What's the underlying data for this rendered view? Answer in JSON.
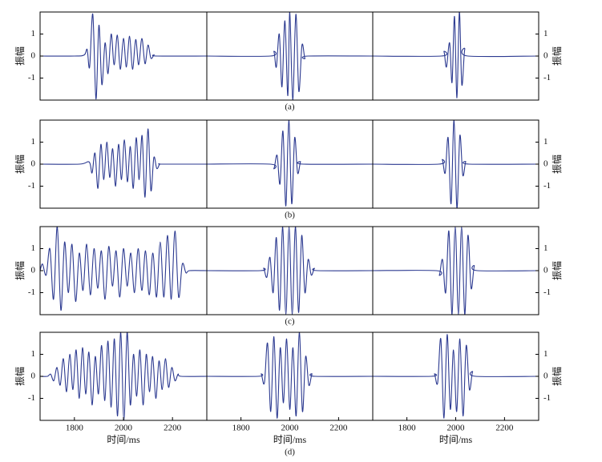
{
  "chart_data": [
    {
      "type": "line",
      "xlim": [
        1660,
        2340
      ],
      "ylim": [
        -2,
        2
      ],
      "yticks": [
        -1,
        0,
        1
      ],
      "ylabel": "振幅",
      "yaxis_side": "left",
      "color": "#2b3990",
      "x": [
        1660,
        1800,
        1840,
        1852,
        1862,
        1875,
        1888,
        1900,
        1912,
        1925,
        1937,
        1950,
        1962,
        1975,
        1987,
        2000,
        2012,
        2025,
        2037,
        2050,
        2062,
        2075,
        2088,
        2100,
        2112,
        2125,
        2137,
        2340
      ],
      "values": [
        0,
        0,
        0.05,
        0.3,
        -0.5,
        1.9,
        -1.95,
        1.4,
        -1.3,
        0.6,
        -0.8,
        1.0,
        -0.4,
        0.95,
        -0.6,
        0.8,
        -0.5,
        0.9,
        -0.6,
        0.75,
        -0.4,
        0.8,
        -0.35,
        0.5,
        -0.1,
        0.05,
        0,
        0
      ]
    },
    {
      "type": "line",
      "xlim": [
        1660,
        2340
      ],
      "ylim": [
        -2,
        2
      ],
      "caption": "(a)",
      "color": "#2b3990",
      "x": [
        1660,
        1920,
        1935,
        1945,
        1957,
        1968,
        1980,
        1992,
        2000,
        2012,
        2025,
        2037,
        2050,
        2062,
        2075,
        2340
      ],
      "values": [
        0,
        0,
        0.2,
        -0.5,
        1.0,
        -1.4,
        1.6,
        -1.8,
        2,
        -2,
        1.9,
        -1.6,
        0.5,
        -0.1,
        0,
        0
      ]
    },
    {
      "type": "line",
      "xlim": [
        1660,
        2340
      ],
      "ylim": [
        -2,
        2
      ],
      "yticks": [
        -1,
        0,
        1
      ],
      "ylabel": "振幅",
      "yaxis_side": "right",
      "color": "#2b3990",
      "x": [
        1660,
        1940,
        1952,
        1962,
        1975,
        1985,
        1995,
        2005,
        2015,
        2025,
        2037,
        2050,
        2340
      ],
      "values": [
        0,
        0,
        0.2,
        -0.5,
        0.6,
        -1.2,
        1.8,
        -1.9,
        2,
        -1.3,
        0.3,
        0,
        0
      ]
    },
    {
      "type": "line",
      "xlim": [
        1660,
        2340
      ],
      "ylim": [
        -2,
        2
      ],
      "yticks": [
        -1,
        0,
        1
      ],
      "ylabel": "振幅",
      "yaxis_side": "left",
      "color": "#2b3990",
      "x": [
        1660,
        1820,
        1860,
        1872,
        1884,
        1896,
        1908,
        1920,
        1932,
        1944,
        1956,
        1968,
        1980,
        1992,
        2004,
        2016,
        2028,
        2040,
        2052,
        2064,
        2076,
        2088,
        2100,
        2112,
        2124,
        2136,
        2148,
        2160,
        2340
      ],
      "values": [
        0,
        0,
        0.1,
        -0.4,
        0.5,
        -1.1,
        0.9,
        -0.7,
        1.0,
        -0.6,
        0.7,
        -1.0,
        0.9,
        -0.7,
        1.1,
        -0.8,
        0.8,
        -1.1,
        1.2,
        -0.7,
        1.3,
        -1.5,
        1.6,
        -1.2,
        0.3,
        -0.2,
        0,
        0,
        0
      ]
    },
    {
      "type": "line",
      "xlim": [
        1660,
        2340
      ],
      "ylim": [
        -2,
        2
      ],
      "caption": "(b)",
      "color": "#2b3990",
      "x": [
        1660,
        1920,
        1935,
        1948,
        1960,
        1972,
        1984,
        1996,
        2008,
        2020,
        2032,
        2044,
        2056,
        2340
      ],
      "values": [
        0,
        0,
        -0.2,
        0.4,
        -0.9,
        1.5,
        -1.9,
        2,
        -1.8,
        1.2,
        -0.4,
        0.1,
        0,
        0
      ]
    },
    {
      "type": "line",
      "xlim": [
        1660,
        2340
      ],
      "ylim": [
        -2,
        2
      ],
      "yticks": [
        -1,
        0,
        1
      ],
      "ylabel": "振幅",
      "yaxis_side": "right",
      "color": "#2b3990",
      "x": [
        1660,
        1930,
        1945,
        1957,
        1969,
        1981,
        1993,
        2005,
        2017,
        2029,
        2041,
        2055,
        2340
      ],
      "values": [
        0,
        0,
        0.2,
        -0.4,
        1.2,
        -1.8,
        2,
        -2,
        1.3,
        -0.5,
        0.1,
        0,
        0
      ]
    },
    {
      "type": "line",
      "xlim": [
        1660,
        2340
      ],
      "ylim": [
        -2,
        2
      ],
      "yticks": [
        -1,
        0,
        1
      ],
      "ylabel": "振幅",
      "yaxis_side": "left",
      "color": "#2b3990",
      "x": [
        1660,
        1670,
        1685,
        1700,
        1715,
        1730,
        1745,
        1760,
        1775,
        1790,
        1805,
        1820,
        1835,
        1850,
        1865,
        1880,
        1895,
        1910,
        1925,
        1940,
        1955,
        1970,
        1985,
        2000,
        2015,
        2030,
        2045,
        2060,
        2075,
        2090,
        2105,
        2120,
        2135,
        2150,
        2165,
        2180,
        2195,
        2210,
        2225,
        2240,
        2255,
        2270,
        2340
      ],
      "values": [
        0,
        0.3,
        -0.2,
        1.0,
        -1.3,
        2,
        -1.8,
        1.3,
        -1.0,
        1.2,
        -1.4,
        0.8,
        -0.9,
        1.2,
        -1.1,
        1.0,
        -0.8,
        0.9,
        -1.3,
        1.1,
        -0.7,
        0.9,
        -1.2,
        1.0,
        -0.7,
        0.8,
        -1.0,
        1.0,
        -0.9,
        0.9,
        -1.1,
        0.8,
        -1.2,
        1.3,
        -1.2,
        1.6,
        -1.3,
        1.8,
        -1.2,
        0.3,
        -0.1,
        0,
        0
      ]
    },
    {
      "type": "line",
      "xlim": [
        1660,
        2340
      ],
      "ylim": [
        -2,
        2
      ],
      "caption": "(c)",
      "color": "#2b3990",
      "x": [
        1660,
        1880,
        1893,
        1906,
        1919,
        1932,
        1945,
        1958,
        1971,
        1984,
        1997,
        2010,
        2023,
        2036,
        2049,
        2062,
        2075,
        2088,
        2101,
        2114,
        2340
      ],
      "values": [
        0,
        0,
        0.1,
        -0.3,
        0.6,
        -1.0,
        1.5,
        -1.8,
        2,
        -2,
        2,
        -2,
        2,
        -1.9,
        1.6,
        -1.0,
        0.5,
        -0.2,
        0.1,
        0,
        0
      ]
    },
    {
      "type": "line",
      "xlim": [
        1660,
        2340
      ],
      "ylim": [
        -2,
        2
      ],
      "yticks": [
        -1,
        0,
        1
      ],
      "ylabel": "振幅",
      "yaxis_side": "right",
      "color": "#2b3990",
      "x": [
        1660,
        1920,
        1933,
        1946,
        1959,
        1972,
        1985,
        1998,
        2011,
        2024,
        2037,
        2050,
        2063,
        2076,
        2089,
        2340
      ],
      "values": [
        0,
        0,
        -0.2,
        0.5,
        -1.0,
        1.8,
        -2,
        2,
        -2,
        2,
        -2,
        1.6,
        -0.8,
        0.2,
        0,
        0
      ]
    },
    {
      "type": "line",
      "xlim": [
        1660,
        2340
      ],
      "ylim": [
        -2,
        2
      ],
      "yticks": [
        -1,
        0,
        1
      ],
      "ylabel": "振幅",
      "yaxis_side": "left",
      "xticks": [
        1800,
        2000,
        2200
      ],
      "xlabel": "时间/ms",
      "color": "#2b3990",
      "x": [
        1660,
        1690,
        1703,
        1716,
        1729,
        1742,
        1755,
        1768,
        1781,
        1794,
        1807,
        1820,
        1833,
        1846,
        1859,
        1872,
        1885,
        1898,
        1911,
        1924,
        1937,
        1950,
        1963,
        1976,
        1989,
        2002,
        2015,
        2028,
        2041,
        2054,
        2067,
        2080,
        2093,
        2106,
        2119,
        2132,
        2145,
        2158,
        2171,
        2184,
        2197,
        2210,
        2223,
        2236,
        2340
      ],
      "values": [
        0,
        0,
        0.1,
        -0.2,
        0.4,
        -0.4,
        0.8,
        -0.7,
        1.0,
        -0.6,
        1.2,
        -1.0,
        1.3,
        -0.8,
        1.1,
        -1.3,
        0.9,
        -0.8,
        1.4,
        -1.1,
        1.6,
        -1.4,
        1.7,
        -1.8,
        2,
        -2,
        2,
        -1.3,
        1.0,
        -0.9,
        1.2,
        -1.3,
        1.0,
        -0.7,
        0.9,
        -1.0,
        0.7,
        -0.6,
        0.8,
        -0.5,
        0.4,
        -0.2,
        0.1,
        0,
        0
      ]
    },
    {
      "type": "line",
      "xlim": [
        1660,
        2340
      ],
      "ylim": [
        -2,
        2
      ],
      "xticks": [
        1800,
        2000,
        2200
      ],
      "xlabel": "时间/ms",
      "caption": "(d)",
      "color": "#2b3990",
      "x": [
        1660,
        1870,
        1883,
        1896,
        1909,
        1922,
        1935,
        1948,
        1961,
        1974,
        1987,
        2000,
        2013,
        2026,
        2039,
        2052,
        2065,
        2078,
        2091,
        2104,
        2340
      ],
      "values": [
        0,
        0,
        0.1,
        -0.3,
        1.5,
        -1.6,
        1.8,
        -1.9,
        1.3,
        -1.2,
        1.7,
        -1.5,
        1.3,
        -1.8,
        2,
        -1.6,
        0.9,
        -0.4,
        0.1,
        0,
        0
      ]
    },
    {
      "type": "line",
      "xlim": [
        1660,
        2340
      ],
      "ylim": [
        -2,
        2
      ],
      "yticks": [
        -1,
        0,
        1
      ],
      "ylabel": "振幅",
      "yaxis_side": "right",
      "xticks": [
        1800,
        2000,
        2200
      ],
      "xlabel": "时间/ms",
      "color": "#2b3990",
      "x": [
        1660,
        1900,
        1913,
        1926,
        1939,
        1952,
        1965,
        1978,
        1991,
        2004,
        2017,
        2030,
        2043,
        2056,
        2069,
        2082,
        2340
      ],
      "values": [
        0,
        0,
        0.1,
        -0.3,
        1.7,
        -1.9,
        1.9,
        -1.5,
        1.2,
        -1.6,
        1.7,
        -1.8,
        1.4,
        -0.6,
        0.2,
        0,
        0
      ]
    }
  ]
}
